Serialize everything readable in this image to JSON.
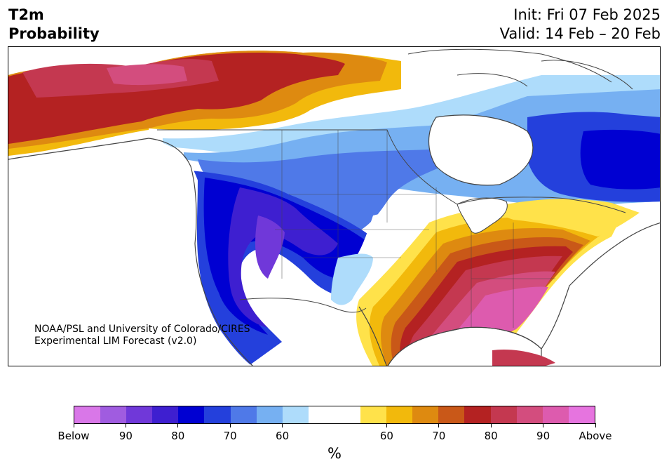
{
  "header": {
    "variable": "T2m",
    "product": "Probability",
    "init": "Init: Fri 07 Feb 2025",
    "valid": "Valid: 14 Feb – 20 Feb"
  },
  "credit": {
    "line1": "NOAA/PSL and University of Colorado/CIRES",
    "line2": "Experimental LIM Forecast (v2.0)"
  },
  "colorbar": {
    "unit": "%",
    "colors": [
      "#d977e8",
      "#a05ce0",
      "#7038d9",
      "#3e1fd0",
      "#0000d2",
      "#2440dc",
      "#4f79e8",
      "#76b0f2",
      "#aedcfb",
      "#ffffff",
      "#ffffff",
      "#ffe24a",
      "#f2b90c",
      "#de8a10",
      "#c95818",
      "#b42222",
      "#c43850",
      "#d34d7e",
      "#dd5bae",
      "#e674df"
    ],
    "tick_labels": [
      "Below",
      "90",
      "80",
      "70",
      "60",
      "60",
      "70",
      "80",
      "90",
      "Above"
    ]
  },
  "map": {
    "region": "North America",
    "palette": {
      "deep_red": "#b42222",
      "red": "#c43850",
      "pink": "#d34d7e",
      "magenta": "#dd5bae",
      "orange": "#de8a10",
      "dark_orange": "#c95818",
      "gold": "#f2b90c",
      "yellow": "#ffe24a",
      "pale_blue": "#aedcfb",
      "light_blue": "#76b0f2",
      "mid_blue": "#4f79e8",
      "blue": "#2440dc",
      "deep_blue": "#0000d2",
      "indigo": "#3e1fd0",
      "violet": "#7038d9",
      "coast": "#444444"
    }
  }
}
